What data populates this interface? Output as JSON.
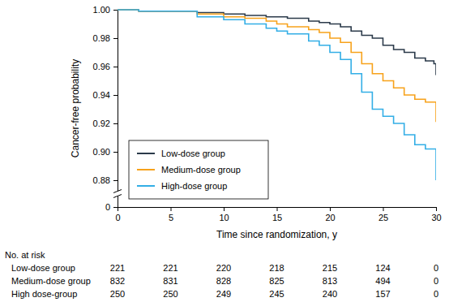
{
  "chart_data": {
    "type": "line",
    "x_label": "Time since randomization, y",
    "y_label": "Cancer-free probability",
    "line_style": "step",
    "legend": "lower left",
    "grid": false,
    "xlim": [
      0,
      30
    ],
    "xticks": [
      0,
      5,
      10,
      15,
      20,
      25,
      30
    ],
    "ylim": [
      0,
      1
    ],
    "yticks": [
      0,
      0.88,
      {
        "value": 0.9,
        "label": "0.90"
      },
      0.92,
      0.94,
      0.96,
      0.98,
      {
        "value": 1,
        "label": "1.00"
      }
    ],
    "x": [
      0,
      2,
      7.5,
      10,
      12,
      14,
      15,
      16,
      18,
      19,
      20,
      21,
      22,
      23,
      24,
      25,
      26,
      27,
      28,
      29,
      29.8,
      30
    ],
    "series": [
      {
        "name": "Low-dose group",
        "color": "#2b3a4a",
        "values": [
          1,
          0.999,
          0.998,
          0.997,
          0.996,
          0.995,
          0.995,
          0.994,
          0.992,
          0.991,
          0.99,
          0.988,
          0.985,
          0.982,
          0.98,
          0.975,
          0.972,
          0.97,
          0.966,
          0.964,
          0.962,
          0.954
        ]
      },
      {
        "name": "Medium-dose group",
        "color": "#f7a21b",
        "values": [
          1,
          0.999,
          0.997,
          0.995,
          0.994,
          0.992,
          0.99,
          0.988,
          0.986,
          0.984,
          0.98,
          0.977,
          0.97,
          0.962,
          0.955,
          0.95,
          0.945,
          0.94,
          0.937,
          0.935,
          0.935,
          0.921
        ]
      },
      {
        "name": "High-dose group",
        "color": "#33aee6",
        "values": [
          1,
          0.999,
          0.995,
          0.993,
          0.99,
          0.987,
          0.985,
          0.983,
          0.978,
          0.975,
          0.97,
          0.965,
          0.955,
          0.942,
          0.93,
          0.925,
          0.92,
          0.912,
          0.905,
          0.902,
          0.902,
          0.88
        ]
      }
    ],
    "at_risk": {
      "title": "No. at risk",
      "rows": [
        {
          "name": "Low-dose group",
          "values": [
            221,
            221,
            220,
            218,
            215,
            124,
            0
          ]
        },
        {
          "name": "Medium-dose group",
          "values": [
            832,
            831,
            828,
            825,
            813,
            494,
            0
          ]
        },
        {
          "name": "High dose-group",
          "values": [
            250,
            250,
            249,
            245,
            240,
            157,
            0
          ]
        }
      ]
    }
  }
}
